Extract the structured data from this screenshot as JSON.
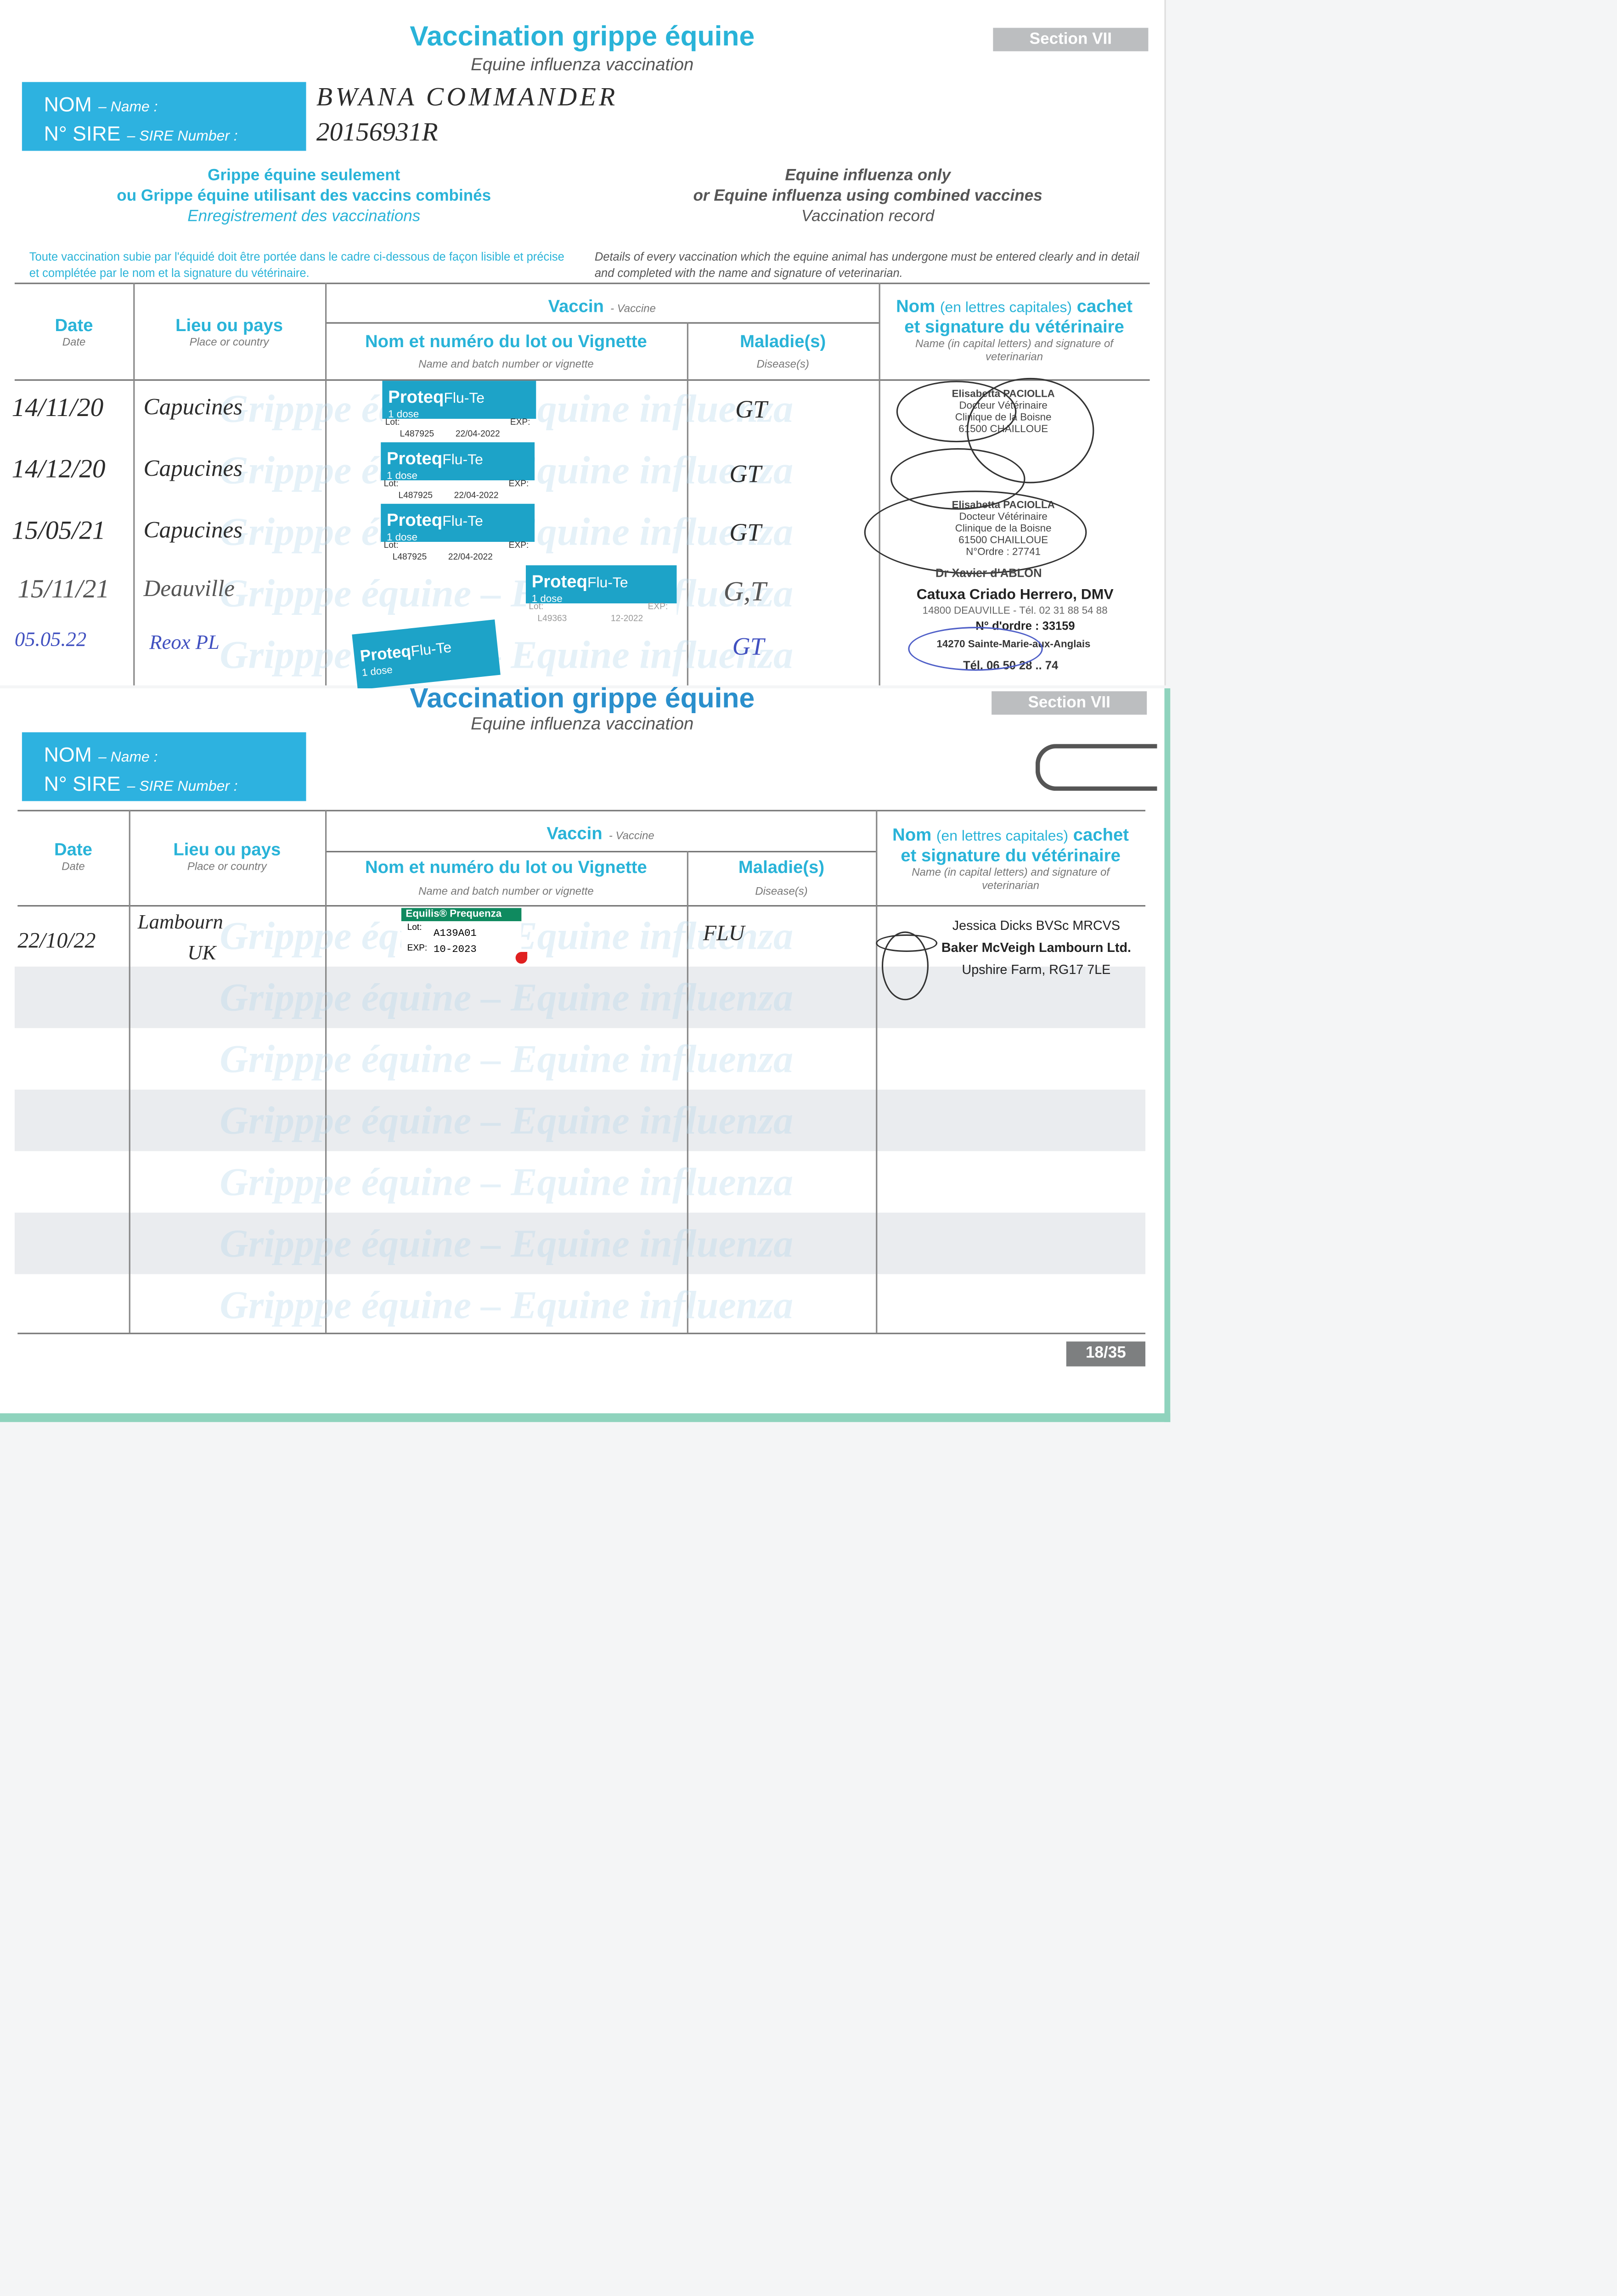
{
  "top_page": {
    "title": "Vaccination grippe équine",
    "subtitle": "Equine influenza vaccination",
    "section": "Section VII",
    "nom_label": "NOM",
    "nom_sub": "– Name :",
    "sire_label": "N° SIRE",
    "sire_sub": "– SIRE Number :",
    "name_value": "BWANA COMMANDER",
    "sire_value": "20156931R",
    "fr_heading": [
      "Grippe équine seulement",
      "ou Grippe équine utilisant des vaccins combinés",
      "Enregistrement des vaccinations"
    ],
    "en_heading": [
      "Equine influenza only",
      "or Equine influenza using combined vaccines",
      "Vaccination record"
    ],
    "fr_instructions": "Toute vaccination subie par l'équidé doit être portée dans le cadre ci-dessous de façon lisible et précise et complétée par le nom et la signature du vétérinaire.",
    "en_instructions": "Details of every vaccination which the equine animal has undergone must be entered clearly and in detail and completed with the name and signature of veterinarian.",
    "rows": [
      {
        "date": "14/11/20",
        "place": "Capucines",
        "disease": "GT",
        "sticker_brand": "Proteq",
        "sticker_product": "Flu-Te",
        "sticker_dose": "1 dose",
        "lot": "L487925",
        "exp": "22/04-2022"
      },
      {
        "date": "14/12/20",
        "place": "Capucines",
        "disease": "GT",
        "sticker_brand": "Proteq",
        "sticker_product": "Flu-Te",
        "sticker_dose": "1 dose",
        "lot": "L487925",
        "exp": "22/04-2022"
      },
      {
        "date": "15/05/21",
        "place": "Capucines",
        "disease": "GT",
        "sticker_brand": "Proteq",
        "sticker_product": "Flu-Te",
        "sticker_dose": "1 dose",
        "lot": "L487925",
        "exp": "22/04-2022"
      },
      {
        "date": "15/11/21",
        "place": "Deauville",
        "disease": "G,T",
        "sticker_brand": "Proteq",
        "sticker_product": "Flu-Te",
        "sticker_dose": "1 dose",
        "lot": "L49363",
        "exp": "12-2022"
      },
      {
        "date": "05.05.22",
        "place": "Reox PL",
        "disease": "GT",
        "sticker_brand": "Proteq",
        "sticker_product": "Flu-Te",
        "sticker_dose": "1 dose",
        "lot": "",
        "exp": ""
      }
    ],
    "vet_stamps": {
      "vet1_name": "Elisabetta PACIOLLA",
      "vet1_title": "Docteur Vétérinaire",
      "vet1_clinic": "Clinique de la Boisne",
      "vet1_city": "61500 CHAILLOUE",
      "vet1_ordre": "N°Ordre : 27741",
      "vet2_name": "Dr Xavier d'ABLON",
      "vet3_name": "Catuxa Criado Herrero, DMV",
      "vet3_city": "14800 DEAUVILLE - Tél. 02 31 88 54 88",
      "vet3_ordre": "N° d'ordre : 33159",
      "vet4_city": "14270 Sainte-Marie-aux-Anglais",
      "vet4_tel": "Tél. 06 50 28 .. 74"
    }
  },
  "bottom_page": {
    "title": "Vaccination grippe équine",
    "subtitle": "Equine influenza vaccination",
    "section": "Section VII",
    "nom_label": "NOM",
    "nom_sub": "– Name :",
    "sire_label": "N° SIRE",
    "sire_sub": "– SIRE Number :",
    "rows": [
      {
        "date": "22/10/22",
        "place": "Lambourn",
        "place2": "UK",
        "disease": "FLU",
        "sticker_brand": "Equilis® Prequenza",
        "lot_label": "Lot:",
        "lot": "A139A01",
        "exp_label": "EXP:",
        "exp": "10-2023",
        "vet": [
          "Jessica Dicks BVSc MRCVS",
          "Baker McVeigh Lambourn Ltd.",
          "Upshire Farm, RG17 7LE"
        ]
      }
    ],
    "page_number": "18/35"
  },
  "table_headers": {
    "date": "Date",
    "date_sub": "Date",
    "place": "Lieu ou pays",
    "place_sub": "Place or country",
    "vaccine": "Vaccin",
    "vaccine_sub": "- Vaccine",
    "batch": "Nom et numéro du lot ou Vignette",
    "batch_sub": "Name and batch number or vignette",
    "disease": "Maladie(s)",
    "disease_sub": "Disease(s)",
    "vet": "Nom",
    "vet_mid": "(en lettres capitales)",
    "vet_end": "cachet",
    "vet_line2": "et signature du vétérinaire",
    "vet_sub": "Name (in capital letters) and signature of veterinarian"
  },
  "watermark": "Gripppe équine – Equine influenza",
  "lot_label": "Lot:",
  "exp_label": "EXP:",
  "colors": {
    "accent": "#29b3d8",
    "sticker": "#1da3c8",
    "equilis": "#0f8a5f",
    "section_box": "#bcbec0",
    "cover_edge": "#8fd3bd"
  }
}
